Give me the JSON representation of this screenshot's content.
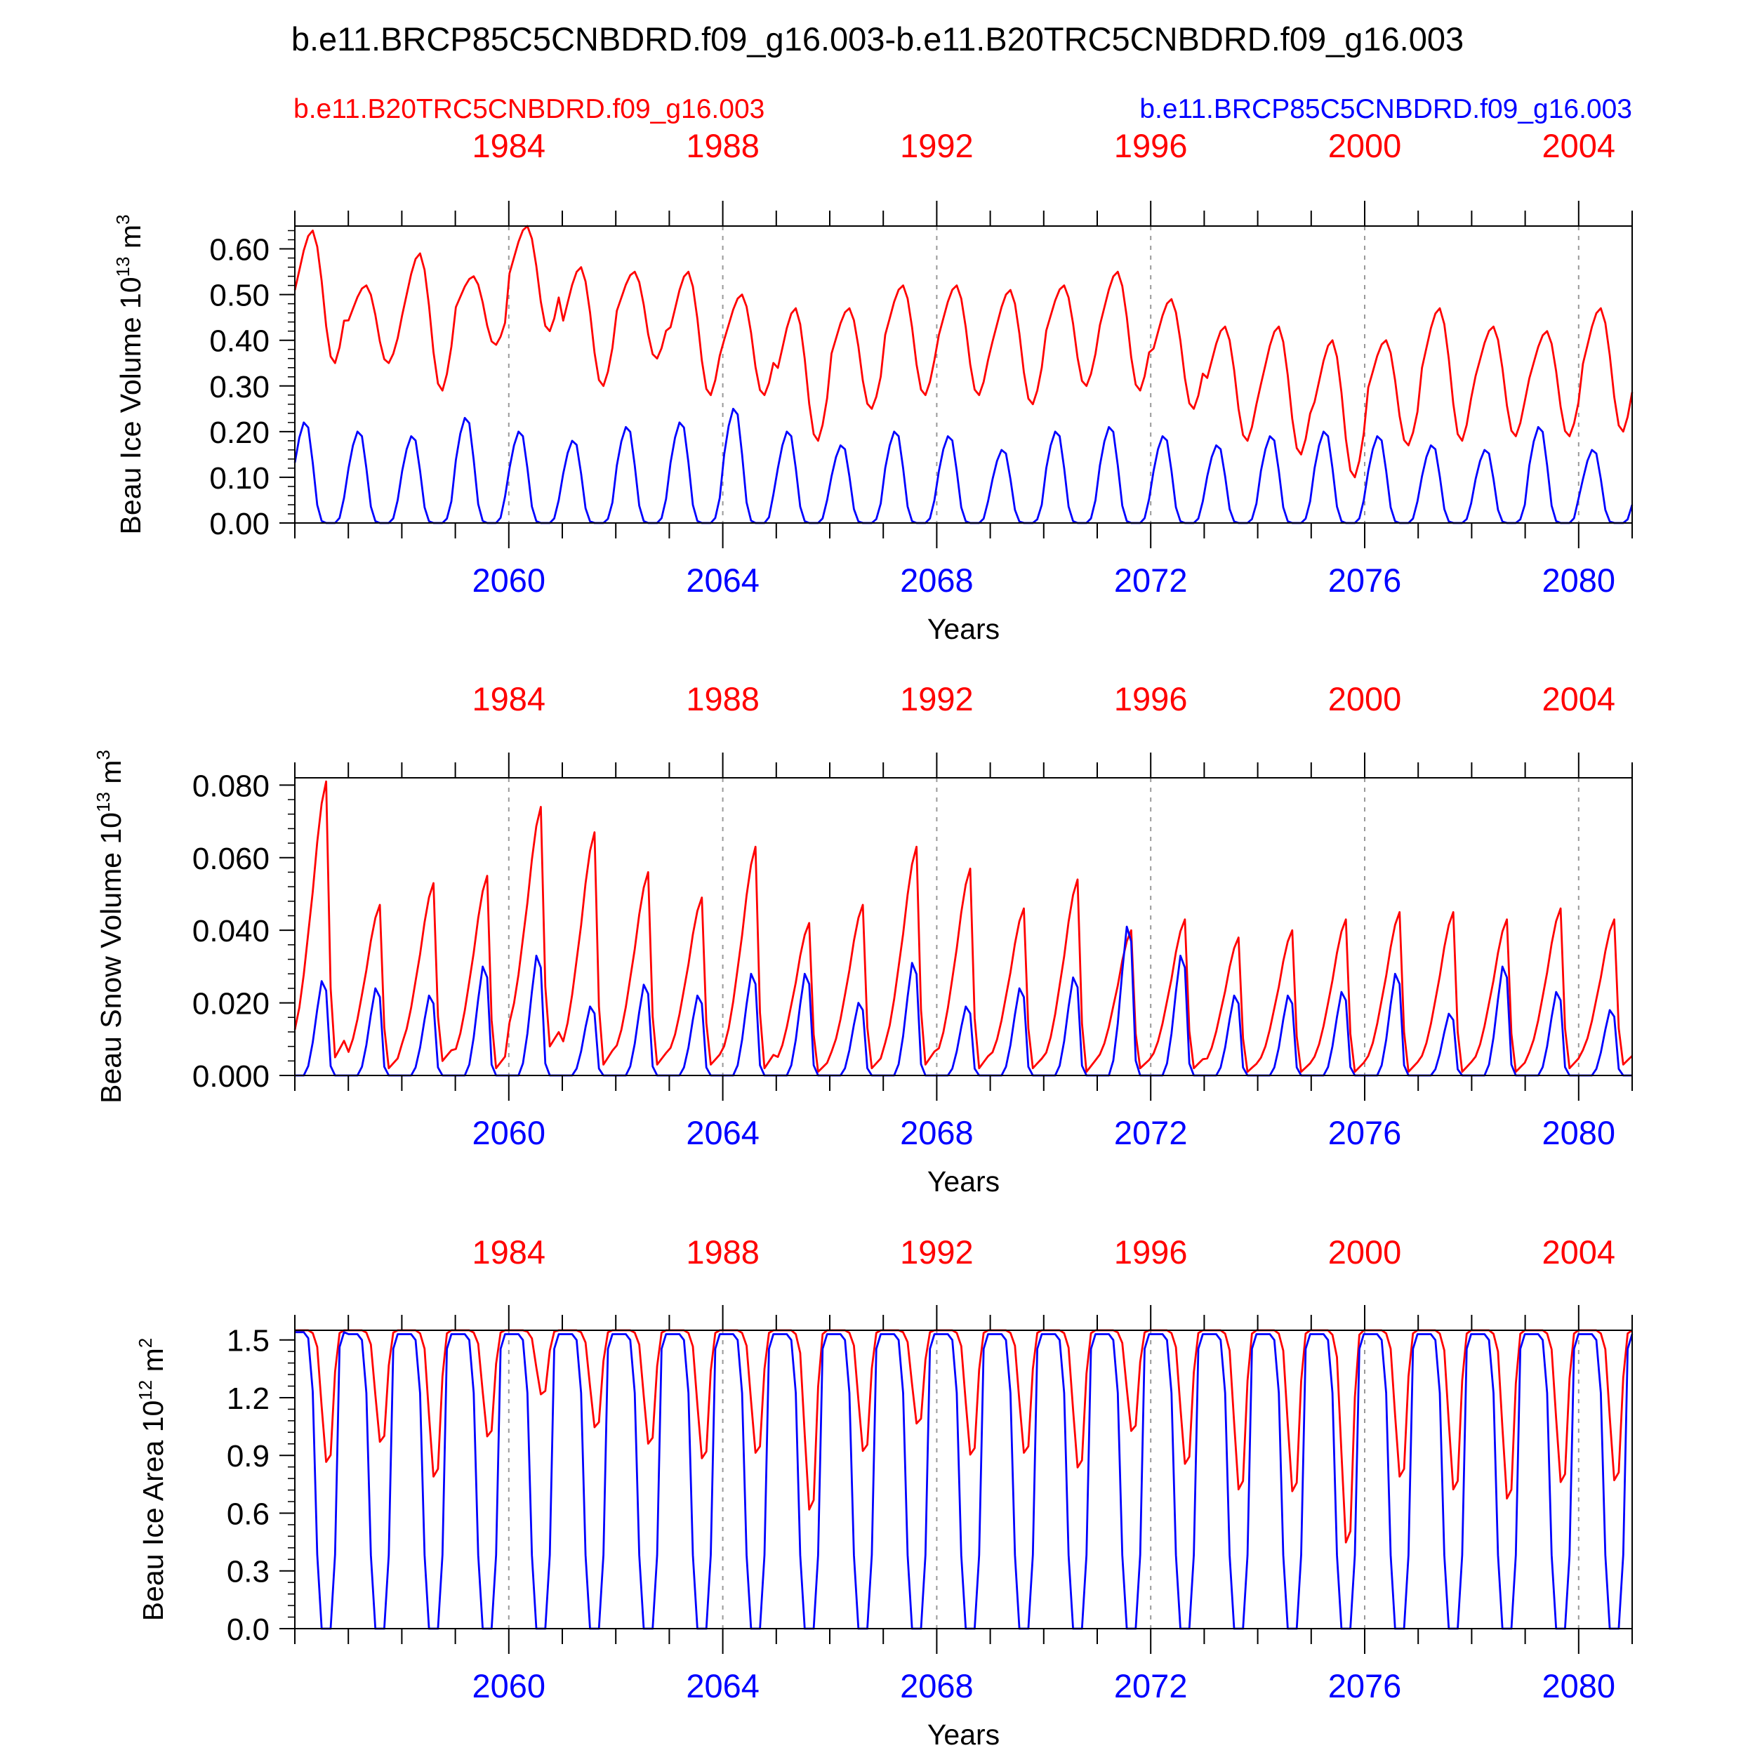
{
  "figure": {
    "title": "b.e11.BRCP85C5CNBDRD.f09_g16.003-b.e11.B20TRC5CNBDRD.f09_g16.003",
    "legend_left": "b.e11.B20TRC5CNBDRD.f09_g16.003",
    "legend_right": "b.e11.BRCP85C5CNBDRD.f09_g16.003",
    "colors": {
      "red": "#ff0000",
      "blue": "#0000ff",
      "axis": "#000000",
      "grid": "#999999"
    }
  },
  "chart_data": [
    {
      "type": "line",
      "ylabel": "Beau Ice Volume",
      "yunit_base": "10",
      "yunit_exp": "13",
      "yunit_suffix": "m",
      "yunit_suffix_exp": "3",
      "xlabel": "Years",
      "ylim": [
        0,
        0.65
      ],
      "yticks": [
        "0.00",
        "0.10",
        "0.20",
        "0.30",
        "0.40",
        "0.50",
        "0.60"
      ],
      "ytick_values": [
        0,
        0.1,
        0.2,
        0.3,
        0.4,
        0.5,
        0.6
      ],
      "bottom_axis": {
        "min": 2056.0,
        "max": 2081.0,
        "tick_labels": [
          "2060",
          "2064",
          "2068",
          "2072",
          "2076",
          "2080"
        ],
        "tick_values": [
          2060,
          2064,
          2068,
          2072,
          2076,
          2080
        ]
      },
      "top_axis": {
        "min": 1980.0,
        "max": 2005.0,
        "tick_labels": [
          "1984",
          "1988",
          "1992",
          "1996",
          "2000",
          "2004"
        ],
        "tick_values": [
          1984,
          1988,
          1992,
          1996,
          2000,
          2004
        ]
      },
      "grid_x": [
        2060,
        2064,
        2068,
        2072,
        2076,
        2080
      ],
      "series": [
        {
          "color": "#ff0000",
          "minima": [
            0.35,
            0.35,
            0.29,
            0.39,
            0.42,
            0.3,
            0.36,
            0.28,
            0.28,
            0.18,
            0.25,
            0.28,
            0.28,
            0.26,
            0.3,
            0.29,
            0.25,
            0.18,
            0.15,
            0.1,
            0.17,
            0.18,
            0.19,
            0.19,
            0.2
          ],
          "maxima": [
            0.64,
            0.52,
            0.59,
            0.54,
            0.65,
            0.56,
            0.55,
            0.55,
            0.5,
            0.47,
            0.47,
            0.52,
            0.52,
            0.51,
            0.52,
            0.55,
            0.49,
            0.43,
            0.43,
            0.4,
            0.4,
            0.47,
            0.43,
            0.42,
            0.47
          ]
        },
        {
          "color": "#0000ff",
          "minima": [
            0.0,
            0.0,
            0.0,
            0.0,
            0.0,
            0.0,
            0.0,
            0.0,
            0.0,
            0.0,
            0.0,
            0.0,
            0.0,
            0.0,
            0.0,
            0.0,
            0.0,
            0.0,
            0.0,
            0.0,
            0.0,
            0.0,
            0.0,
            0.0,
            0.0
          ],
          "maxima": [
            0.22,
            0.2,
            0.19,
            0.23,
            0.2,
            0.18,
            0.21,
            0.22,
            0.25,
            0.2,
            0.17,
            0.2,
            0.19,
            0.16,
            0.2,
            0.21,
            0.19,
            0.17,
            0.19,
            0.2,
            0.19,
            0.17,
            0.16,
            0.21,
            0.16
          ]
        }
      ]
    },
    {
      "type": "line",
      "ylabel": "Beau Snow Volume",
      "yunit_base": "10",
      "yunit_exp": "13",
      "yunit_suffix": "m",
      "yunit_suffix_exp": "3",
      "xlabel": "Years",
      "ylim": [
        0,
        0.082
      ],
      "yticks": [
        "0.000",
        "0.020",
        "0.040",
        "0.060",
        "0.080"
      ],
      "ytick_values": [
        0,
        0.02,
        0.04,
        0.06,
        0.08
      ],
      "bottom_axis": {
        "min": 2056.0,
        "max": 2081.0,
        "tick_labels": [
          "2060",
          "2064",
          "2068",
          "2072",
          "2076",
          "2080"
        ],
        "tick_values": [
          2060,
          2064,
          2068,
          2072,
          2076,
          2080
        ]
      },
      "top_axis": {
        "min": 1980.0,
        "max": 2005.0,
        "tick_labels": [
          "1984",
          "1988",
          "1992",
          "1996",
          "2000",
          "2004"
        ],
        "tick_values": [
          1984,
          1988,
          1992,
          1996,
          2000,
          2004
        ]
      },
      "grid_x": [
        2060,
        2064,
        2068,
        2072,
        2076,
        2080
      ],
      "series": [
        {
          "color": "#ff0000",
          "minima": [
            0.005,
            0.002,
            0.004,
            0.002,
            0.008,
            0.003,
            0.003,
            0.003,
            0.002,
            0.001,
            0.002,
            0.003,
            0.002,
            0.002,
            0.001,
            0.002,
            0.002,
            0.001,
            0.001,
            0.001,
            0.001,
            0.001,
            0.001,
            0.002,
            0.003
          ],
          "maxima": [
            0.081,
            0.047,
            0.053,
            0.055,
            0.074,
            0.067,
            0.056,
            0.049,
            0.063,
            0.042,
            0.047,
            0.063,
            0.057,
            0.046,
            0.054,
            0.04,
            0.043,
            0.038,
            0.04,
            0.043,
            0.045,
            0.045,
            0.043,
            0.046,
            0.043
          ]
        },
        {
          "color": "#0000ff",
          "minima": [
            0.0,
            0.0,
            0.0,
            0.0,
            0.0,
            0.0,
            0.0,
            0.0,
            0.0,
            0.0,
            0.0,
            0.0,
            0.0,
            0.0,
            0.0,
            0.0,
            0.0,
            0.0,
            0.0,
            0.0,
            0.0,
            0.0,
            0.0,
            0.0,
            0.0
          ],
          "maxima": [
            0.026,
            0.024,
            0.022,
            0.03,
            0.033,
            0.019,
            0.025,
            0.022,
            0.028,
            0.028,
            0.02,
            0.031,
            0.019,
            0.024,
            0.027,
            0.041,
            0.033,
            0.022,
            0.022,
            0.023,
            0.028,
            0.017,
            0.03,
            0.023,
            0.018
          ]
        }
      ]
    },
    {
      "type": "line",
      "ylabel": "Beau Ice Area",
      "yunit_base": "10",
      "yunit_exp": "12",
      "yunit_suffix": "m",
      "yunit_suffix_exp": "2",
      "xlabel": "Years",
      "ylim": [
        0,
        1.55
      ],
      "yticks": [
        "0.0",
        "0.3",
        "0.6",
        "0.9",
        "1.2",
        "1.5"
      ],
      "ytick_values": [
        0,
        0.3,
        0.6,
        0.9,
        1.2,
        1.5
      ],
      "bottom_axis": {
        "min": 2056.0,
        "max": 2081.0,
        "tick_labels": [
          "2060",
          "2064",
          "2068",
          "2072",
          "2076",
          "2080"
        ],
        "tick_values": [
          2060,
          2064,
          2068,
          2072,
          2076,
          2080
        ]
      },
      "top_axis": {
        "min": 1980.0,
        "max": 2005.0,
        "tick_labels": [
          "1984",
          "1988",
          "1992",
          "1996",
          "2000",
          "2004"
        ],
        "tick_values": [
          1984,
          1988,
          1992,
          1996,
          2000,
          2004
        ]
      },
      "grid_x": [
        2060,
        2064,
        2068,
        2072,
        2076,
        2080
      ],
      "series": [
        {
          "color": "#ff0000",
          "minima": [
            0.83,
            0.94,
            0.75,
            0.97,
            1.2,
            1.02,
            0.93,
            0.85,
            0.88,
            0.57,
            0.89,
            1.04,
            0.87,
            0.88,
            0.8,
            1.0,
            0.82,
            0.68,
            0.67,
            0.39,
            0.75,
            0.68,
            0.63,
            0.72,
            0.73
          ],
          "maxima": [
            1.55,
            1.55,
            1.55,
            1.55,
            1.55,
            1.55,
            1.55,
            1.55,
            1.55,
            1.55,
            1.55,
            1.55,
            1.55,
            1.55,
            1.55,
            1.55,
            1.55,
            1.55,
            1.55,
            1.55,
            1.55,
            1.55,
            1.55,
            1.55,
            1.55
          ]
        },
        {
          "color": "#0000ff",
          "minima": [
            0.0,
            0.0,
            0.0,
            0.0,
            0.0,
            0.0,
            0.0,
            0.0,
            0.0,
            0.0,
            0.0,
            0.0,
            0.0,
            0.0,
            0.0,
            0.0,
            0.0,
            0.0,
            0.0,
            0.0,
            0.0,
            0.0,
            0.0,
            0.0,
            0.0
          ],
          "maxima": [
            1.54,
            1.53,
            1.53,
            1.53,
            1.53,
            1.53,
            1.53,
            1.53,
            1.53,
            1.53,
            1.53,
            1.53,
            1.53,
            1.53,
            1.53,
            1.53,
            1.53,
            1.53,
            1.53,
            1.53,
            1.53,
            1.53,
            1.53,
            1.53,
            1.53
          ]
        }
      ]
    }
  ]
}
